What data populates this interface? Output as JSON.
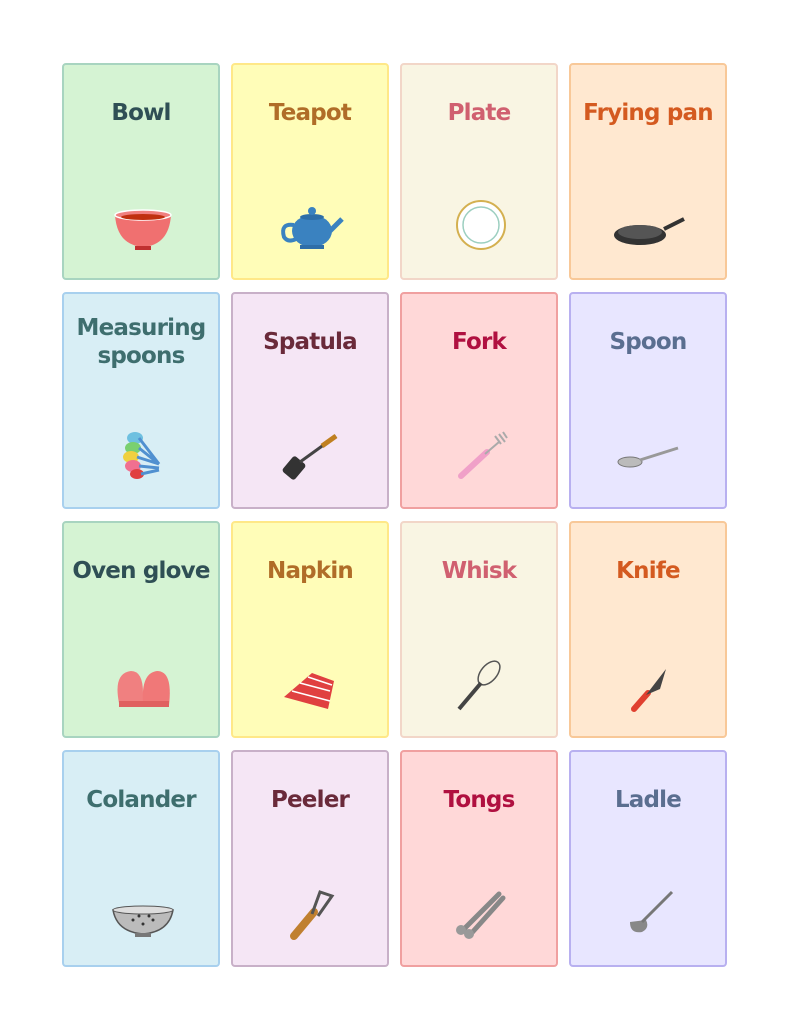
{
  "cards": [
    {
      "label": "Bowl",
      "icon": "bowl-icon",
      "theme": 0
    },
    {
      "label": "Teapot",
      "icon": "teapot-icon",
      "theme": 1
    },
    {
      "label": "Plate",
      "icon": "plate-icon",
      "theme": 2
    },
    {
      "label": "Frying pan",
      "icon": "frying-pan-icon",
      "theme": 3
    },
    {
      "label": "Measuring spoons",
      "icon": "measuring-spoons-icon",
      "theme": 4
    },
    {
      "label": "Spatula",
      "icon": "spatula-icon",
      "theme": 5
    },
    {
      "label": "Fork",
      "icon": "fork-icon",
      "theme": 6
    },
    {
      "label": "Spoon",
      "icon": "spoon-icon",
      "theme": 7
    },
    {
      "label": "Oven glove",
      "icon": "oven-glove-icon",
      "theme": 0
    },
    {
      "label": "Napkin",
      "icon": "napkin-icon",
      "theme": 1
    },
    {
      "label": "Whisk",
      "icon": "whisk-icon",
      "theme": 2
    },
    {
      "label": "Knife",
      "icon": "knife-icon",
      "theme": 3
    },
    {
      "label": "Colander",
      "icon": "colander-icon",
      "theme": 4
    },
    {
      "label": "Peeler",
      "icon": "peeler-icon",
      "theme": 5
    },
    {
      "label": "Tongs",
      "icon": "tongs-icon",
      "theme": 6
    },
    {
      "label": "Ladle",
      "icon": "ladle-icon",
      "theme": 7
    }
  ]
}
